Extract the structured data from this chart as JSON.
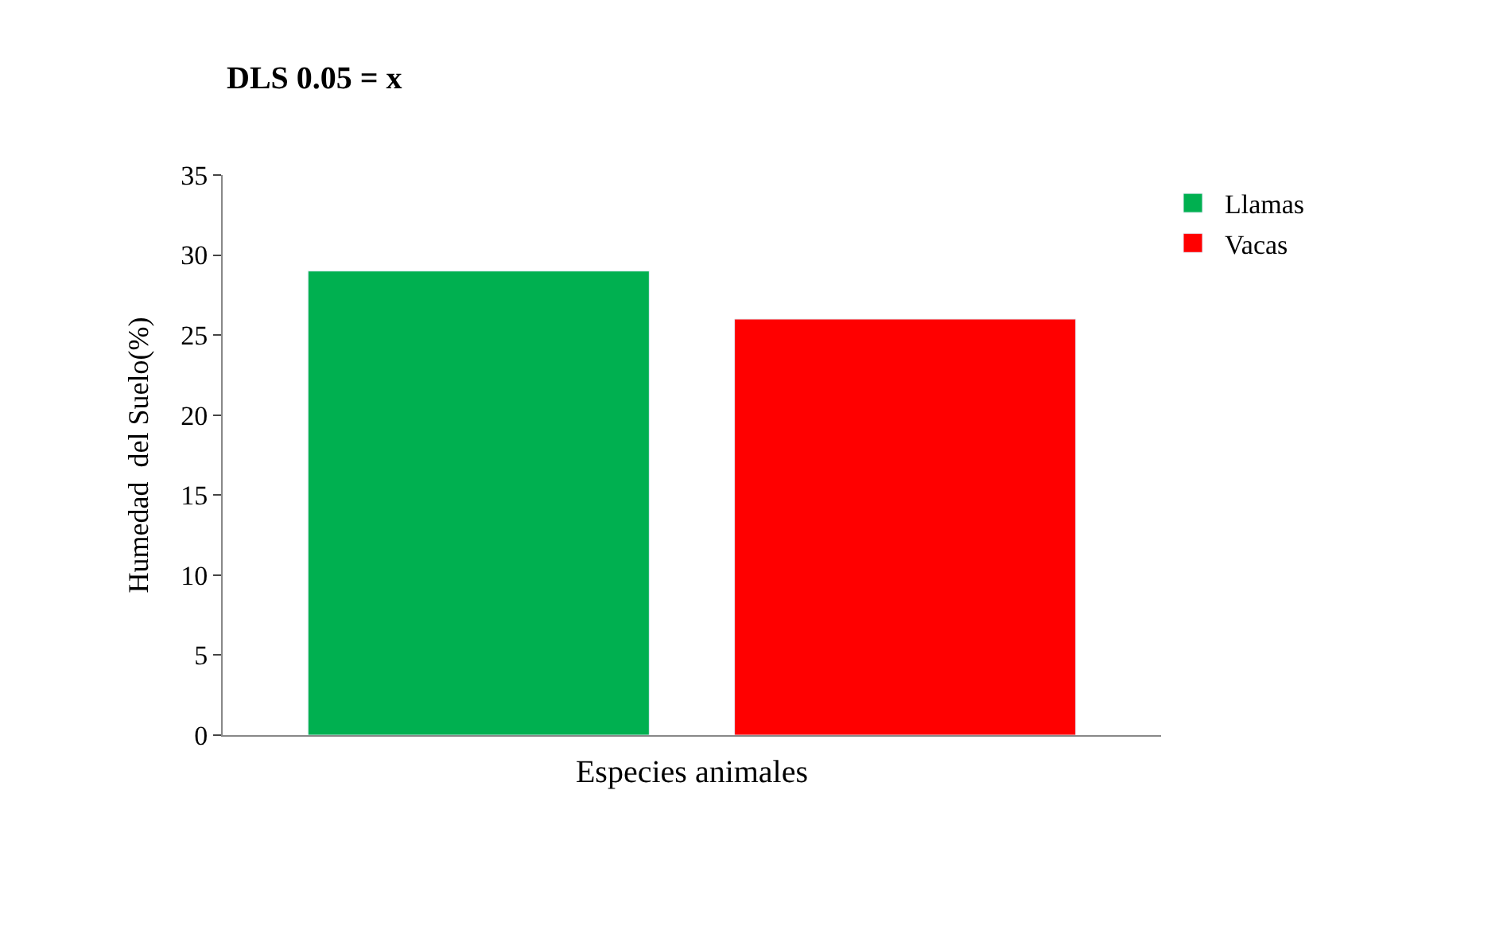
{
  "chart_data": {
    "type": "bar",
    "title": "DLS 0.05 = x",
    "xlabel": "Especies animales",
    "ylabel": "Humedad  del Suelo(%)",
    "categories": [
      null,
      null
    ],
    "series": [
      {
        "name": "Llamas",
        "color": "#00b050",
        "values": [
          29,
          null
        ]
      },
      {
        "name": "Vacas",
        "color": "#ff0000",
        "values": [
          null,
          26
        ]
      }
    ],
    "ylim": [
      0,
      35
    ],
    "yticks": [
      0,
      5,
      10,
      15,
      20,
      25,
      30,
      35
    ],
    "grid": false,
    "legend": "top right",
    "tick_labels": "y"
  }
}
